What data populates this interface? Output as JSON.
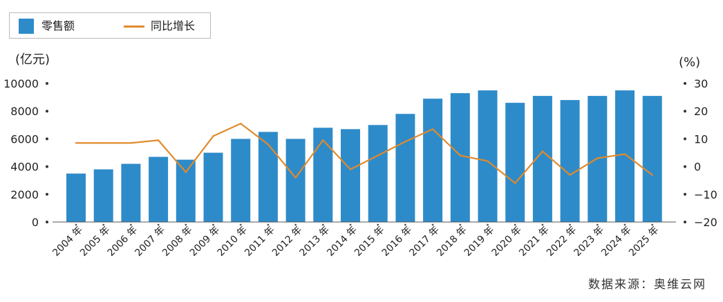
{
  "legend": {
    "bar_label": "零售额",
    "line_label": "同比增长"
  },
  "units": {
    "left": "(亿元)",
    "right": "(%)"
  },
  "source": "数据来源：奥维云网",
  "colors": {
    "bar": "#2E8BC9",
    "line": "#E08A2C",
    "axis": "#333333"
  },
  "chart_data": {
    "type": "bar",
    "title": "",
    "xlabel": "",
    "ylabel": "(亿元)",
    "y2label": "(%)",
    "ylim": [
      0,
      10000
    ],
    "y2lim": [
      -20,
      30
    ],
    "yticks": [
      0,
      2000,
      4000,
      6000,
      8000,
      10000
    ],
    "y2ticks": [
      -20,
      -10,
      0,
      10,
      20,
      30
    ],
    "categories": [
      "2004 年",
      "2005 年",
      "2006 年",
      "2007 年",
      "2008 年",
      "2009 年",
      "2010 年",
      "2011 年",
      "2012 年",
      "2013 年",
      "2014 年",
      "2015 年",
      "2016 年",
      "2017 年",
      "2018 年",
      "2019 年",
      "2020 年",
      "2021 年",
      "2022 年",
      "2023 年",
      "2024 年",
      "2025 年"
    ],
    "series": [
      {
        "name": "零售额",
        "type": "bar",
        "axis": "left",
        "values": [
          3500,
          3800,
          4200,
          4700,
          4500,
          5000,
          6000,
          6500,
          6000,
          6800,
          6700,
          7000,
          7800,
          8900,
          9300,
          9500,
          8600,
          9100,
          8800,
          9100,
          9500,
          9100
        ]
      },
      {
        "name": "同比增长",
        "type": "line",
        "axis": "right",
        "values": [
          8.5,
          8.5,
          8.5,
          9.5,
          -2,
          11,
          15.5,
          8,
          -4,
          9.5,
          -1,
          4,
          9,
          13.5,
          4,
          2,
          -6,
          5.5,
          -3,
          3,
          4.5,
          -3
        ]
      }
    ]
  }
}
